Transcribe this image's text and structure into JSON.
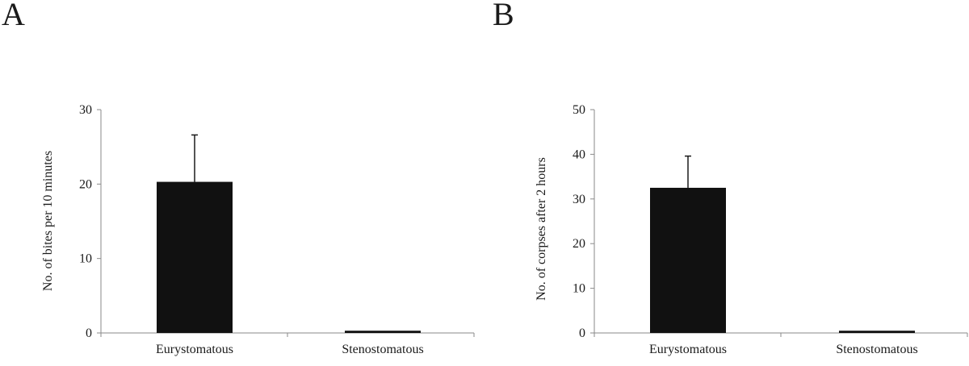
{
  "panels": [
    {
      "letter": "A"
    },
    {
      "letter": "B"
    }
  ],
  "chart_data": [
    {
      "type": "bar",
      "panel": "A",
      "categories": [
        "Eurystomatous",
        "Stenostomatous"
      ],
      "values": [
        20.3,
        0.3
      ],
      "errors": [
        6.3,
        0
      ],
      "ylabel": "No. of bites per 10 minutes",
      "xlabel": "",
      "ylim": [
        0,
        30
      ],
      "yticks": [
        0,
        10,
        20,
        30
      ],
      "bar_color": "#111111",
      "grid": false
    },
    {
      "type": "bar",
      "panel": "B",
      "categories": [
        "Eurystomatous",
        "Stenostomatous"
      ],
      "values": [
        32.5,
        0.5
      ],
      "errors": [
        7.1,
        0
      ],
      "ylabel": "No. of corpses after 2 hours",
      "xlabel": "",
      "ylim": [
        0,
        50
      ],
      "yticks": [
        0,
        10,
        20,
        30,
        40,
        50
      ],
      "bar_color": "#111111",
      "grid": false
    }
  ]
}
